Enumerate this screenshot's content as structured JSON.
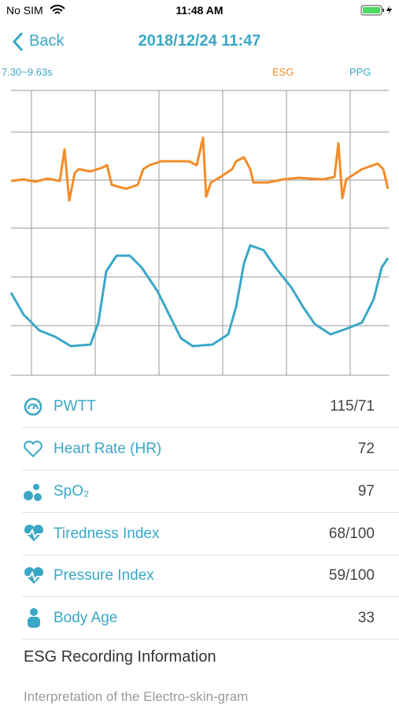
{
  "status_bar": {
    "carrier": "No SIM",
    "time": "11:48 AM"
  },
  "nav": {
    "back": "Back",
    "title": "2018/12/24 11:47"
  },
  "chart_header": {
    "range": "7.30~9.63s",
    "esg": "ESG",
    "ppg": "PPG"
  },
  "metrics": [
    {
      "label": "PWTT",
      "value": "115/71"
    },
    {
      "label": "Heart Rate (HR)",
      "value": 72
    },
    {
      "label": "SpO₂",
      "value": 97
    },
    {
      "label": "Tiredness Index",
      "value": "68/100"
    },
    {
      "label": "Pressure Index",
      "value": "59/100"
    },
    {
      "label": "Body Age",
      "value": 33
    }
  ],
  "recording": {
    "title": "ESG Recording Information",
    "subtitle": "Interpretation of the Electro-skin-gram"
  }
}
